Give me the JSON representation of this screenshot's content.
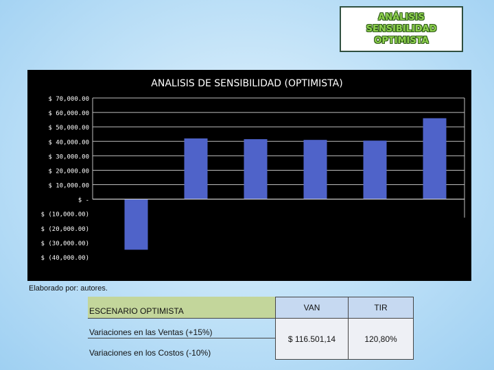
{
  "header": {
    "title_line1": "ANÁLISIS",
    "title_line2": "SENSIBILIDAD",
    "title_line3": "OPTIMISTA"
  },
  "source_note": "Elaborado por: autores.",
  "chart_data": {
    "type": "bar",
    "title": "ANALISIS DE SENSIBILIDAD (OPTIMISTA)",
    "ylim": [
      -40000,
      70000
    ],
    "yticks": [
      70000,
      60000,
      50000,
      40000,
      30000,
      20000,
      10000,
      0,
      -10000,
      -20000,
      -30000,
      -40000
    ],
    "ytick_labels": [
      "$ 70,000.00",
      "$ 60,000.00",
      "$ 50,000.00",
      "$ 40,000.00",
      "$ 30,000.00",
      "$ 20,000.00",
      "$ 10,000.00",
      "$ -",
      "$ (10,000.00)",
      "$ (20,000.00)",
      "$ (30,000.00)",
      "$ (40,000.00)"
    ],
    "values": [
      -35000,
      42000,
      41500,
      41000,
      40500,
      56000
    ],
    "grid": true,
    "bar_color": "#4f63c9",
    "background": "#000000"
  },
  "table": {
    "label_header": "ESCENARIO OPTIMISTA",
    "row1": "Variaciones en las Ventas (+15%)",
    "row2": "Variaciones en los Costos (-10%)",
    "van_header": "VAN",
    "tir_header": "TIR",
    "van_value": "$ 116.501,14",
    "tir_value": "120,80%"
  }
}
